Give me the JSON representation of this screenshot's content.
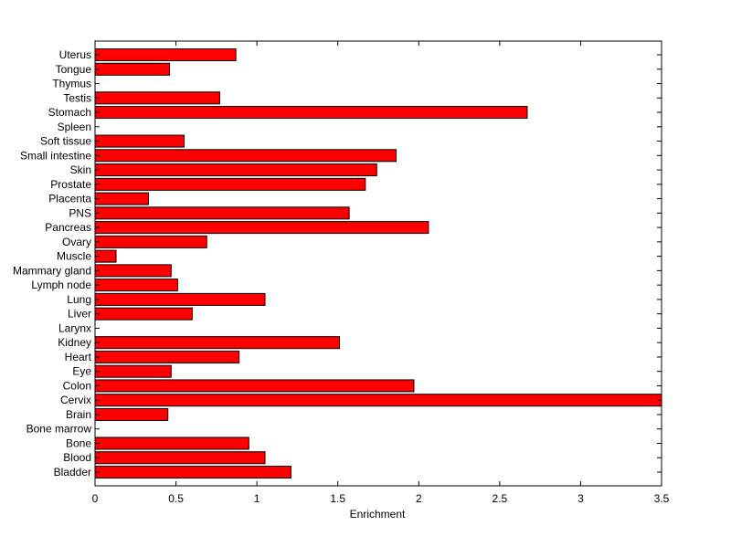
{
  "chart_data": {
    "type": "bar",
    "orientation": "horizontal",
    "categories": [
      "Bladder",
      "Blood",
      "Bone",
      "Bone marrow",
      "Brain",
      "Cervix",
      "Colon",
      "Eye",
      "Heart",
      "Kidney",
      "Larynx",
      "Liver",
      "Lung",
      "Lymph node",
      "Mammary gland",
      "Muscle",
      "Ovary",
      "Pancreas",
      "PNS",
      "Placenta",
      "Prostate",
      "Skin",
      "Small intestine",
      "Soft tissue",
      "Spleen",
      "Stomach",
      "Testis",
      "Thymus",
      "Tongue",
      "Uterus"
    ],
    "values": [
      1.21,
      1.05,
      0.95,
      0,
      0.45,
      3.5,
      1.97,
      0.47,
      0.89,
      1.51,
      0,
      0.6,
      1.05,
      0.51,
      0.47,
      0.13,
      0.69,
      2.06,
      1.57,
      0.33,
      1.67,
      1.74,
      1.86,
      0.55,
      0,
      2.67,
      0.77,
      0,
      0.46,
      0.87
    ],
    "xlabel": "Enrichment",
    "ylabel": "",
    "title": "",
    "xlim": [
      0,
      3.5
    ],
    "xticks": [
      0,
      0.5,
      1,
      1.5,
      2,
      2.5,
      3,
      3.5
    ],
    "xtick_labels": [
      "0",
      "0.5",
      "1",
      "1.5",
      "2",
      "2.5",
      "3",
      "3.5"
    ],
    "grid": false,
    "colors": {
      "bar_fill": "#ff0000",
      "bar_edge": "#000000",
      "axes": "#000000",
      "background": "#ffffff"
    }
  }
}
